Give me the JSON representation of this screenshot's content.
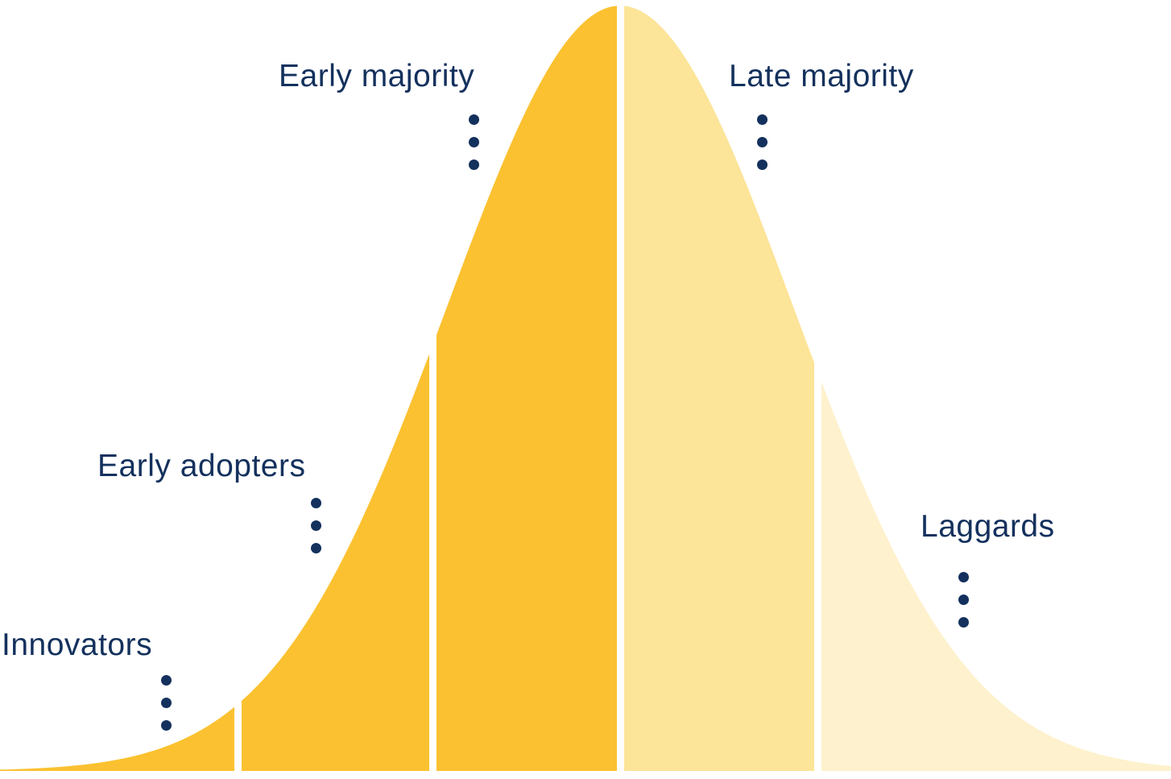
{
  "diagram_name": "diffusion-of-innovation-bell-curve",
  "segments": [
    {
      "label": "Innovators",
      "color": "#FBC130",
      "x_range": [
        0,
        291
      ]
    },
    {
      "label": "Early adopters",
      "color": "#FBC130",
      "x_range": [
        300,
        533
      ]
    },
    {
      "label": "Early majority",
      "color": "#FBC130",
      "x_range": [
        542,
        766
      ]
    },
    {
      "label": "Late majority",
      "color": "#FCE498",
      "x_range": [
        775,
        1011
      ]
    },
    {
      "label": "Laggards",
      "color": "#FEF1CD",
      "x_range": [
        1020,
        1454
      ]
    }
  ],
  "curve": {
    "type": "gaussian-bell",
    "peak_x": 770,
    "sigma": 215,
    "peak_height": 950,
    "baseline_y": 957
  },
  "colors": {
    "label_text": "#14315D",
    "dot": "#14315D",
    "background": "#FFFFFF",
    "divider": "#FFFFFF"
  }
}
